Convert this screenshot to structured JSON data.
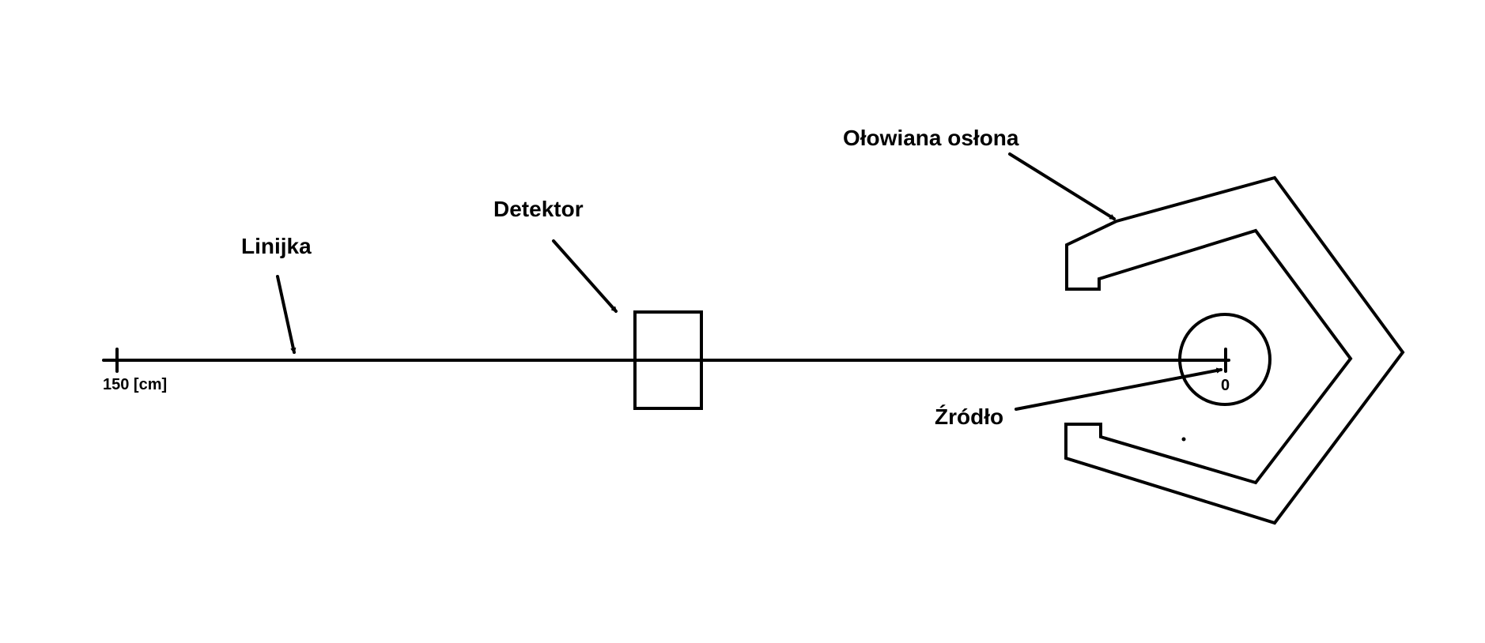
{
  "labels": {
    "shield": "Ołowiana osłona",
    "detector": "Detektor",
    "ruler": "Linijka",
    "source": "Źródło",
    "ruler_start": "150 [cm]",
    "ruler_end": "0"
  },
  "colors": {
    "line": "#000000",
    "background": "#ffffff"
  }
}
